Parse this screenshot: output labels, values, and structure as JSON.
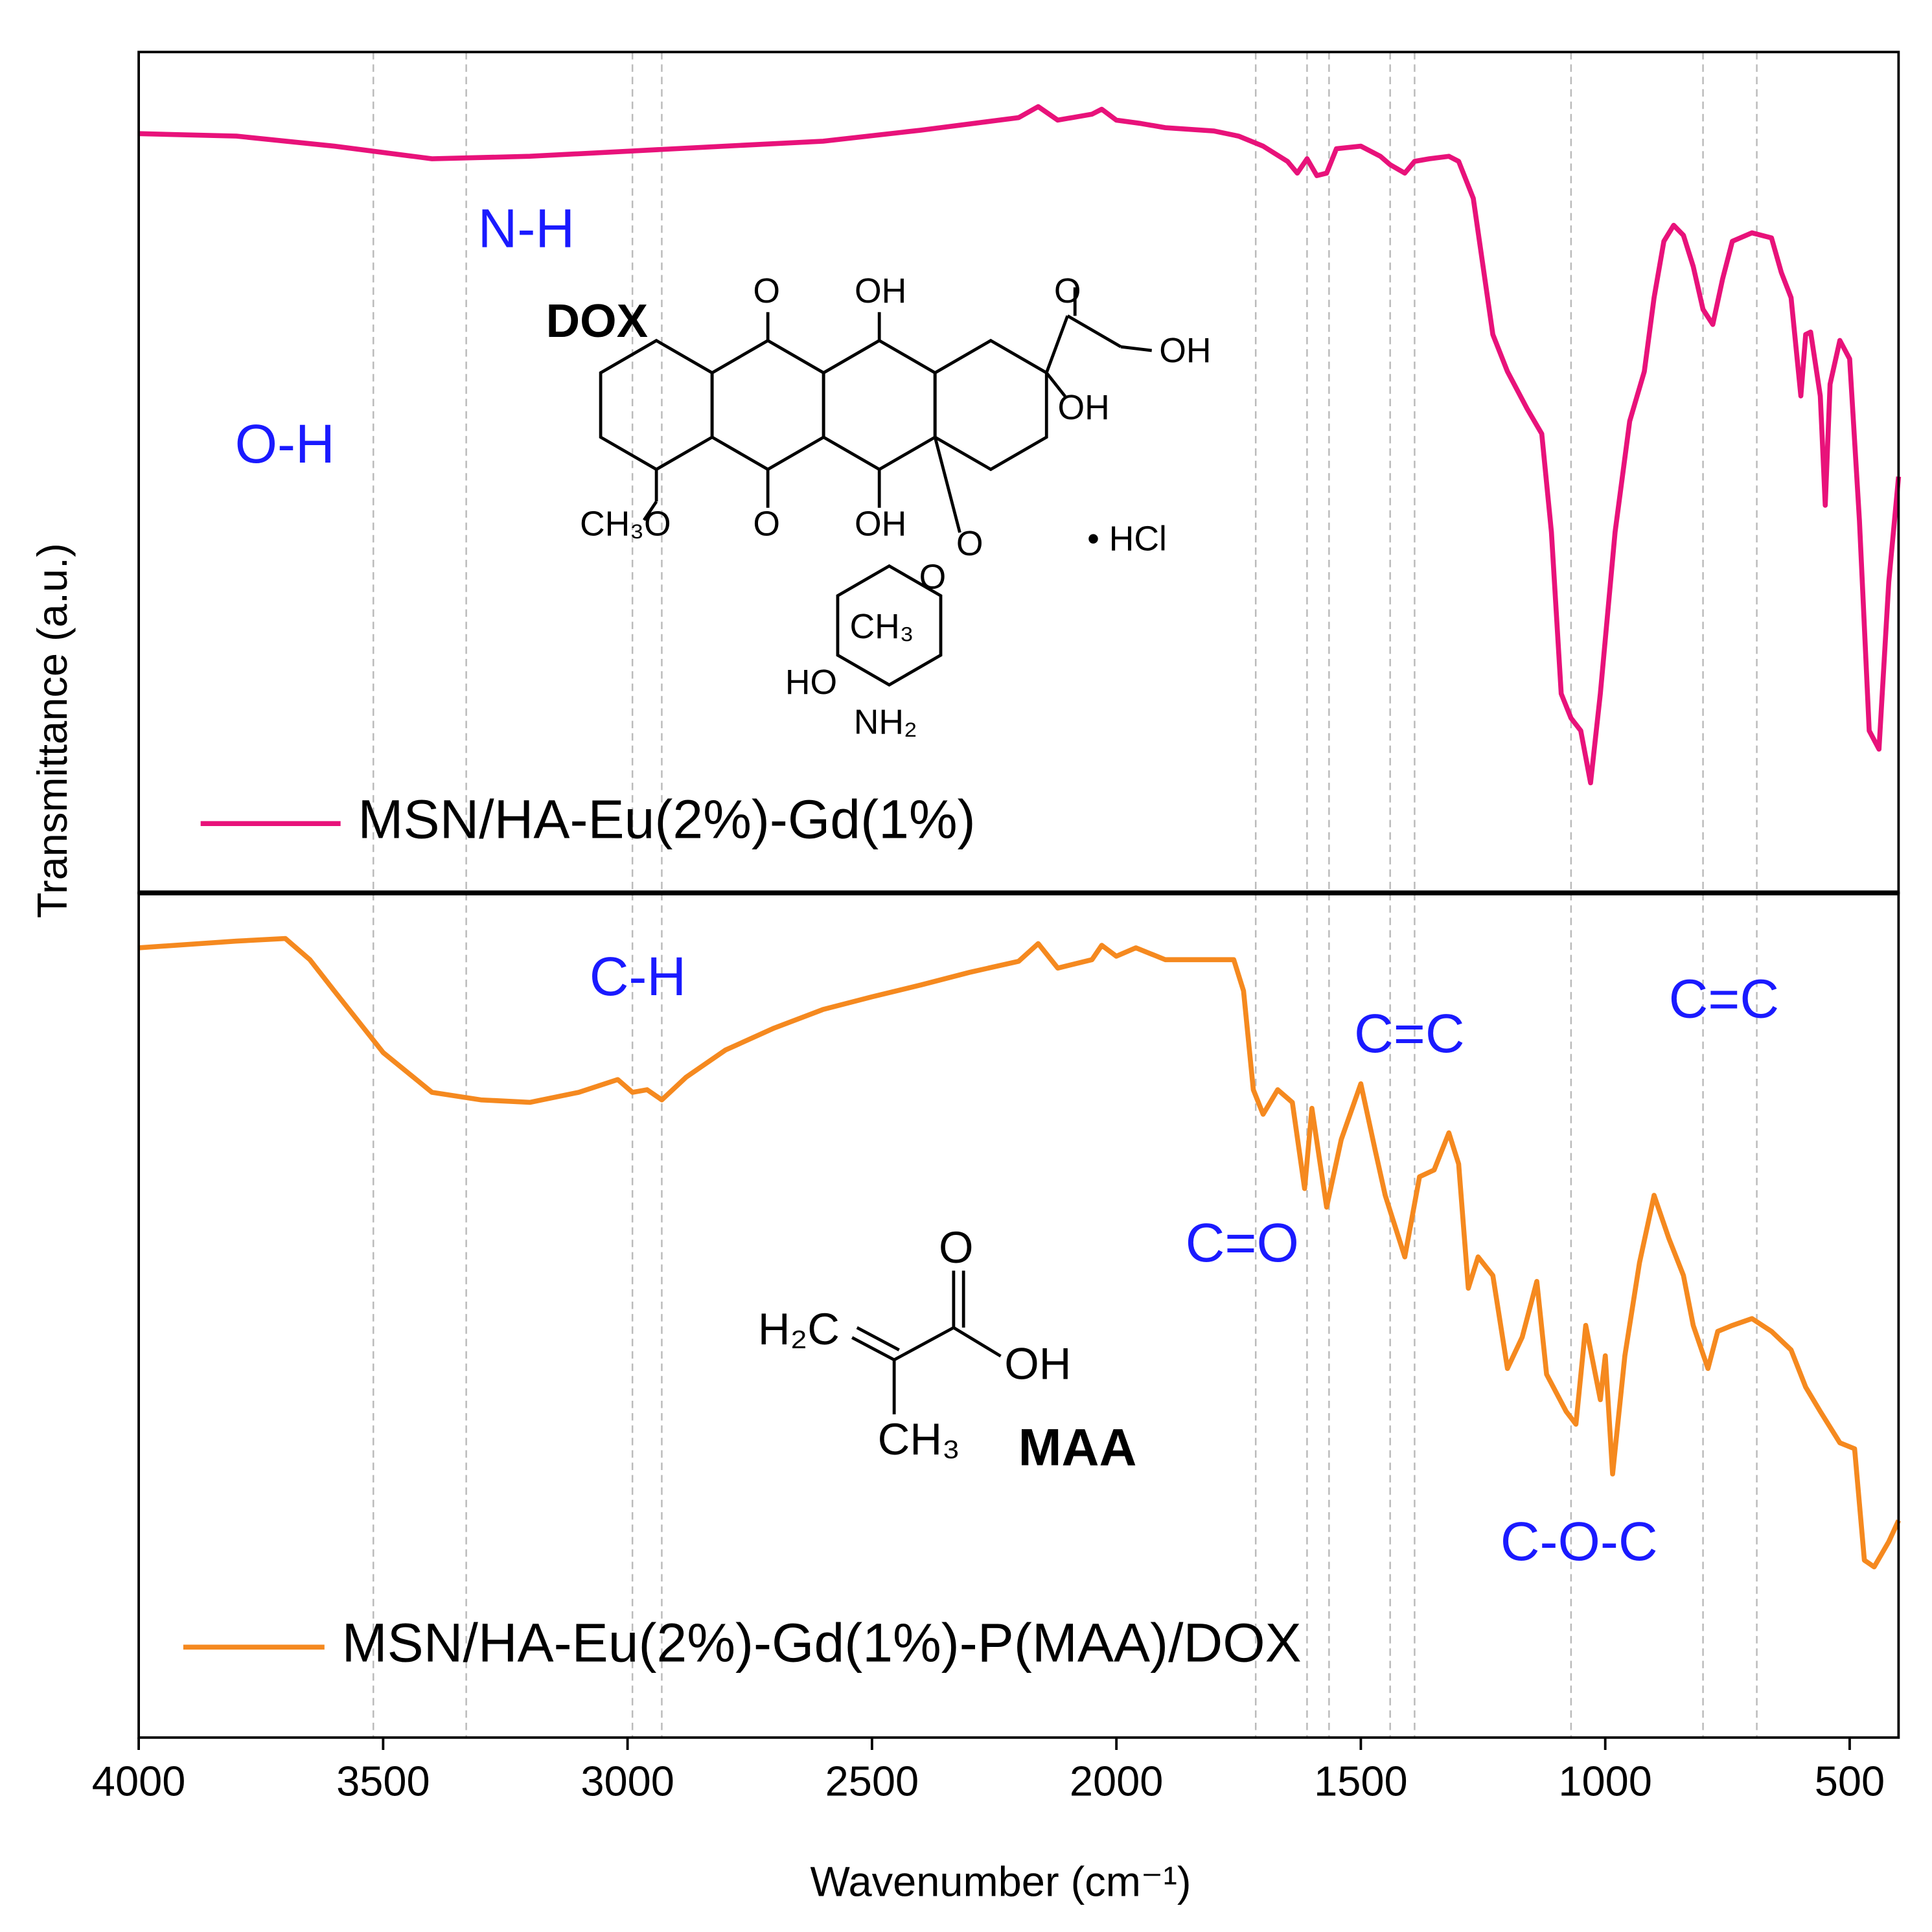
{
  "chart_data": [
    {
      "type": "line",
      "ylabel": "Transmittance (a.u.)",
      "xlim": [
        4000,
        400
      ],
      "ylim": [
        0,
        100
      ],
      "vlines": [
        3520,
        3330,
        2990,
        2930,
        1715,
        1610,
        1565,
        1440,
        1390,
        1070,
        800,
        690
      ],
      "annotations": [
        "O-H",
        "N-H"
      ],
      "structure": {
        "name": "DOX",
        "labels": [
          "O",
          "OH",
          "O",
          "OH",
          "OH",
          "O",
          "OH",
          "CH₃O",
          "O",
          "• HCl",
          "O",
          "CH₃",
          "HO",
          "NH₂"
        ]
      },
      "series": [
        {
          "name": "MSN/HA-Eu(2%)-Gd(1%)",
          "color": "#e8127a",
          "x": [
            4000,
            3800,
            3600,
            3400,
            3200,
            3000,
            2800,
            2600,
            2400,
            2200,
            2160,
            2120,
            2050,
            2030,
            2000,
            1950,
            1900,
            1800,
            1750,
            1700,
            1650,
            1630,
            1610,
            1590,
            1570,
            1550,
            1500,
            1460,
            1440,
            1410,
            1390,
            1360,
            1320,
            1300,
            1280,
            1270,
            1250,
            1230,
            1200,
            1160,
            1130,
            1110,
            1090,
            1070,
            1050,
            1030,
            1010,
            980,
            950,
            920,
            900,
            880,
            860,
            840,
            820,
            800,
            780,
            760,
            740,
            700,
            660,
            640,
            620,
            600,
            590,
            580,
            560,
            550,
            540,
            520,
            500,
            480,
            460,
            440,
            420,
            400
          ],
          "values": [
            90.3,
            90.0,
            88.8,
            87.3,
            87.6,
            88.2,
            88.8,
            89.4,
            90.7,
            92.2,
            93.5,
            91.9,
            92.6,
            93.2,
            91.9,
            91.5,
            91.0,
            90.6,
            90.0,
            88.8,
            87.0,
            85.6,
            87.3,
            85.3,
            85.6,
            88.5,
            88.8,
            87.6,
            86.6,
            85.6,
            87.0,
            87.3,
            87.6,
            87.0,
            84.1,
            82.6,
            74.5,
            66.4,
            62.0,
            57.6,
            54.6,
            42.9,
            23.7,
            20.8,
            19.3,
            13.1,
            23.7,
            42.9,
            56.1,
            62.0,
            70.8,
            77.5,
            79.4,
            78.2,
            74.5,
            69.4,
            67.6,
            73.0,
            77.5,
            78.5,
            77.9,
            73.8,
            70.8,
            59.1,
            66.4,
            66.7,
            59.1,
            46.1,
            60.5,
            65.7,
            63.5,
            44.3,
            19.3,
            17.1,
            37.0,
            49.5
          ]
        }
      ]
    },
    {
      "type": "line",
      "xlabel": "Wavenumber (cm⁻¹)",
      "xlim": [
        4000,
        400
      ],
      "ylim": [
        0,
        100
      ],
      "xticks": [
        4000,
        3500,
        3000,
        2500,
        2000,
        1500,
        1000,
        500
      ],
      "vlines": [
        3520,
        3330,
        2990,
        2930,
        1715,
        1610,
        1565,
        1440,
        1390,
        1070,
        800,
        690
      ],
      "annotations": [
        "C-H",
        "C=C",
        "C=C",
        "C=O",
        "C-O-C"
      ],
      "structure": {
        "name": "MAA",
        "labels": [
          "O",
          "H₂C",
          "OH",
          "CH₃"
        ]
      },
      "series": [
        {
          "name": "MSN/HA-Eu(2%)-Gd(1%)-P(MAA)/DOX",
          "color": "#f5891f",
          "x": [
            4000,
            3800,
            3700,
            3650,
            3600,
            3500,
            3400,
            3300,
            3200,
            3100,
            3020,
            2990,
            2960,
            2930,
            2880,
            2800,
            2700,
            2600,
            2500,
            2400,
            2300,
            2200,
            2160,
            2120,
            2050,
            2030,
            2000,
            1960,
            1900,
            1800,
            1760,
            1740,
            1720,
            1700,
            1670,
            1640,
            1615,
            1600,
            1570,
            1540,
            1500,
            1470,
            1450,
            1410,
            1380,
            1350,
            1320,
            1300,
            1280,
            1260,
            1230,
            1200,
            1170,
            1140,
            1120,
            1080,
            1060,
            1040,
            1010,
            1000,
            985,
            960,
            930,
            900,
            870,
            840,
            820,
            790,
            770,
            740,
            700,
            660,
            620,
            590,
            560,
            520,
            490,
            470,
            450,
            420,
            400
          ],
          "values": [
            93.5,
            94.3,
            94.6,
            92.1,
            88.4,
            81.1,
            76.4,
            75.5,
            75.2,
            76.4,
            77.9,
            76.4,
            76.7,
            75.5,
            78.2,
            81.4,
            84.0,
            86.2,
            87.7,
            89.1,
            90.6,
            91.9,
            94.0,
            91.1,
            92.1,
            93.8,
            92.5,
            93.5,
            92.1,
            92.1,
            92.1,
            88.4,
            76.7,
            73.8,
            76.7,
            75.2,
            65.0,
            74.5,
            62.8,
            70.8,
            77.4,
            69.4,
            64.2,
            56.9,
            66.4,
            67.2,
            71.6,
            67.9,
            53.2,
            56.9,
            54.7,
            43.7,
            47.4,
            54.0,
            43.0,
            38.6,
            37.1,
            48.8,
            40.0,
            45.2,
            31.2,
            45.2,
            56.2,
            64.2,
            59.1,
            54.7,
            48.8,
            43.7,
            48.1,
            48.8,
            49.6,
            48.1,
            45.9,
            41.5,
            38.6,
            34.9,
            34.2,
            21.0,
            20.2,
            23.2,
            25.7
          ]
        }
      ]
    }
  ]
}
